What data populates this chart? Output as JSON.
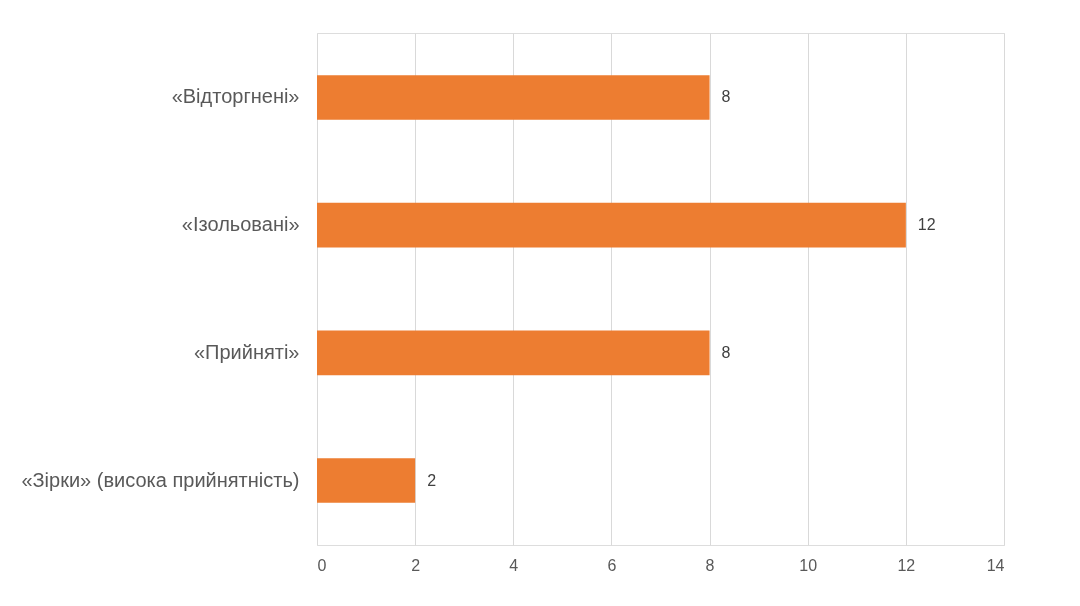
{
  "chart_data": {
    "type": "bar",
    "orientation": "horizontal",
    "categories": [
      "«Відторгнені»",
      "«Ізольовані»",
      "«Прийняті»",
      "«Зірки» (висока прийнятність)"
    ],
    "values": [
      8,
      12,
      8,
      2
    ],
    "color": "#ed7d31",
    "xlim": [
      0,
      14
    ],
    "xticks": [
      0,
      2,
      4,
      6,
      8,
      10,
      12,
      14
    ],
    "grid": "x",
    "data_labels": true
  }
}
